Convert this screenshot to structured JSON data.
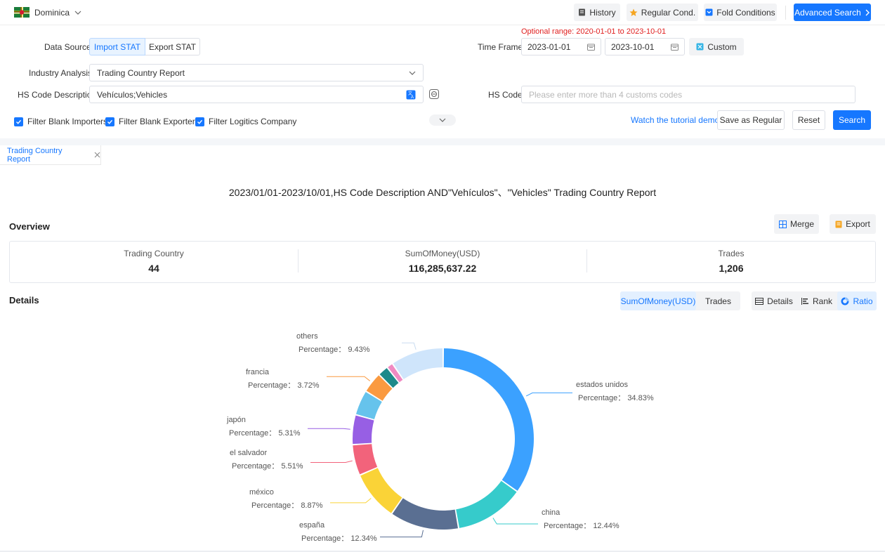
{
  "topbar": {
    "country": "Dominica",
    "history": "History",
    "regular_cond": "Regular Cond.",
    "fold_conditions": "Fold Conditions",
    "advanced_search": "Advanced Search"
  },
  "filters": {
    "optional_range_label": "Optional range:",
    "optional_range_value": "2020-01-01 to 2023-10-01",
    "data_source_label": "Data Source",
    "import_stat": "Import STAT",
    "export_stat": "Export STAT",
    "time_frame_label": "Time Frame",
    "date_start": "2023-01-01",
    "date_end": "2023-10-01",
    "custom": "Custom",
    "industry_label": "Industry Analysis",
    "industry_value": "Trading Country Report",
    "hs_desc_label": "HS Code Description",
    "hs_desc_value": "Vehículos;Vehicles",
    "hs_code_label": "HS Code",
    "hs_code_placeholder": "Please enter more than 4 customs codes",
    "filter_blank_importers": "Filter Blank Importers",
    "filter_blank_exporters": "Filter Blank Exporters",
    "filter_logistics": "Filter Logitics Company",
    "tutorial": "Watch the tutorial demo",
    "save_regular": "Save as Regular",
    "reset": "Reset",
    "search": "Search"
  },
  "tab": {
    "label": "Trading Country Report"
  },
  "report": {
    "title": "2023/01/01-2023/10/01,HS Code Description AND\"Vehículos\"、\"Vehicles\" Trading Country Report"
  },
  "overview": {
    "heading": "Overview",
    "merge": "Merge",
    "export": "Export",
    "stats": [
      {
        "label": "Trading Country",
        "value": "44"
      },
      {
        "label": "SumOfMoney(USD)",
        "value": "116,285,637.22"
      },
      {
        "label": "Trades",
        "value": "1,206"
      }
    ]
  },
  "details": {
    "heading": "Details",
    "metric_sum": "SumOfMoney(USD)",
    "metric_trades": "Trades",
    "view_details": "Details",
    "view_rank": "Rank",
    "view_ratio": "Ratio"
  },
  "chart_data": {
    "type": "pie",
    "variant": "donut",
    "label_prefix": "Percentage：",
    "slices": [
      {
        "name": "estados unidos",
        "value": 34.83,
        "label": "34.83%",
        "color": "#3ba1ff",
        "labeled": true
      },
      {
        "name": "china",
        "value": 12.44,
        "label": "12.44%",
        "color": "#36cbcb",
        "labeled": true
      },
      {
        "name": "españa",
        "value": 12.34,
        "label": "12.34%",
        "color": "#5a6f92",
        "labeled": true
      },
      {
        "name": "méxico",
        "value": 8.87,
        "label": "8.87%",
        "color": "#fad337",
        "labeled": true
      },
      {
        "name": "el salvador",
        "value": 5.51,
        "label": "5.51%",
        "color": "#f2637b",
        "labeled": true
      },
      {
        "name": "japón",
        "value": 5.31,
        "label": "5.31%",
        "color": "#975fe4",
        "labeled": true
      },
      {
        "name": "",
        "value": 4.5,
        "color": "#66c3ec",
        "labeled": false
      },
      {
        "name": "francia",
        "value": 3.72,
        "label": "3.72%",
        "color": "#fa9a40",
        "labeled": true
      },
      {
        "name": "",
        "value": 1.9,
        "color": "#1d8a8a",
        "labeled": false
      },
      {
        "name": "",
        "value": 1.15,
        "color": "#f08ac2",
        "labeled": false
      },
      {
        "name": "others",
        "value": 9.43,
        "label": "9.43%",
        "color": "#cfe5fb",
        "labeled": true
      }
    ]
  }
}
